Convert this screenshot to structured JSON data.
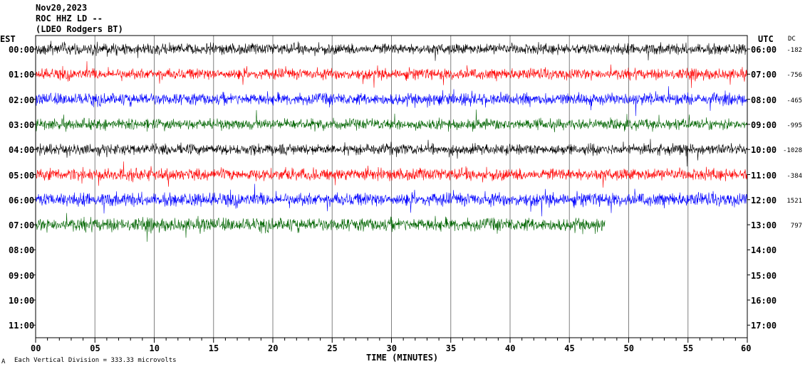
{
  "header": {
    "date": "Nov20,2023",
    "station": "ROC HHZ LD --",
    "source": "(LDEO Rodgers BT)"
  },
  "axis_labels": {
    "left_tz": "EST",
    "right_tz": "UTC",
    "dc": "DC",
    "xlabel": "TIME (MINUTES)",
    "footer": "Each Vertical Division =  333.33 microvolts",
    "footer_mark": "A"
  },
  "colors": {
    "trace_cycle": [
      "#000000",
      "#ff0000",
      "#0000ff",
      "#006400"
    ],
    "grid": "#808080",
    "frame": "#000000"
  },
  "chart_data": {
    "type": "line",
    "subtype": "helicorder",
    "title": "ROC HHZ LD --",
    "xlabel": "TIME (MINUTES)",
    "xlim": [
      0,
      60
    ],
    "x_ticks": [
      "00",
      "05",
      "10",
      "15",
      "20",
      "25",
      "30",
      "35",
      "40",
      "45",
      "50",
      "55",
      "60"
    ],
    "rows_est": [
      "00:00",
      "01:00",
      "02:00",
      "03:00",
      "04:00",
      "05:00",
      "06:00",
      "07:00",
      "08:00",
      "09:00",
      "10:00",
      "11:00"
    ],
    "rows_utc": [
      "06:00",
      "07:00",
      "08:00",
      "09:00",
      "10:00",
      "11:00",
      "12:00",
      "13:00",
      "14:00",
      "15:00",
      "16:00",
      "17:00"
    ],
    "dc_offsets": [
      "-182",
      "-756",
      "-465",
      "-995",
      "-1028",
      "-384",
      "1521",
      "797"
    ],
    "traces": [
      {
        "row": 0,
        "color": "#000000",
        "end_minute": 60,
        "amplitude": 0.9
      },
      {
        "row": 1,
        "color": "#ff0000",
        "end_minute": 60,
        "amplitude": 0.9
      },
      {
        "row": 2,
        "color": "#0000ff",
        "end_minute": 60,
        "amplitude": 1.0
      },
      {
        "row": 3,
        "color": "#006400",
        "end_minute": 60,
        "amplitude": 0.9
      },
      {
        "row": 4,
        "color": "#000000",
        "end_minute": 60,
        "amplitude": 0.9
      },
      {
        "row": 5,
        "color": "#ff0000",
        "end_minute": 60,
        "amplitude": 1.0
      },
      {
        "row": 6,
        "color": "#0000ff",
        "end_minute": 60,
        "amplitude": 1.1
      },
      {
        "row": 7,
        "color": "#006400",
        "end_minute": 48,
        "amplitude": 1.1
      }
    ],
    "minute_labels_units": "minutes",
    "grid": true
  }
}
